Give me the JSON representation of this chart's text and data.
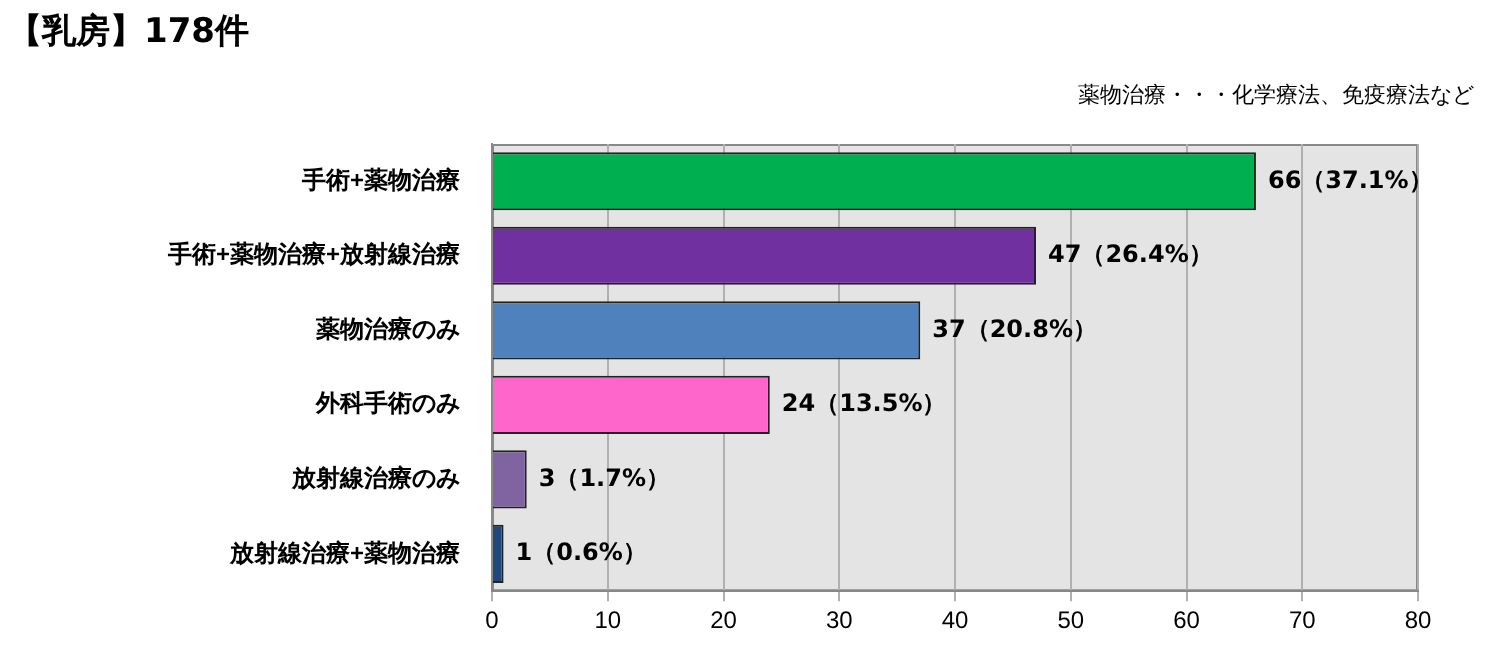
{
  "chart_data": {
    "type": "bar",
    "orientation": "horizontal",
    "title": "【乳房】178件",
    "annotations": [
      "薬物治療・・・化学療法、免疫療法など"
    ],
    "categories": [
      "手術+薬物治療",
      "手術+薬物治療+放射線治療",
      "薬物治療のみ",
      "外科手術のみ",
      "放射線治療のみ",
      "放射線治療+薬物治療"
    ],
    "values": [
      66,
      47,
      37,
      24,
      3,
      1
    ],
    "colors": [
      "#00b050",
      "#7030a0",
      "#4f81bd",
      "#ff66cc",
      "#8064a2",
      "#1f497d"
    ],
    "value_labels": [
      "66（37.1%）",
      "47（26.4%）",
      "37（20.8%）",
      "24（13.5%）",
      "3（1.7%）",
      "1（0.6%）"
    ],
    "xlim": [
      0,
      80
    ],
    "xticks": [
      0,
      10,
      20,
      30,
      40,
      50,
      60,
      70,
      80
    ],
    "grid": "x",
    "legend": false
  }
}
